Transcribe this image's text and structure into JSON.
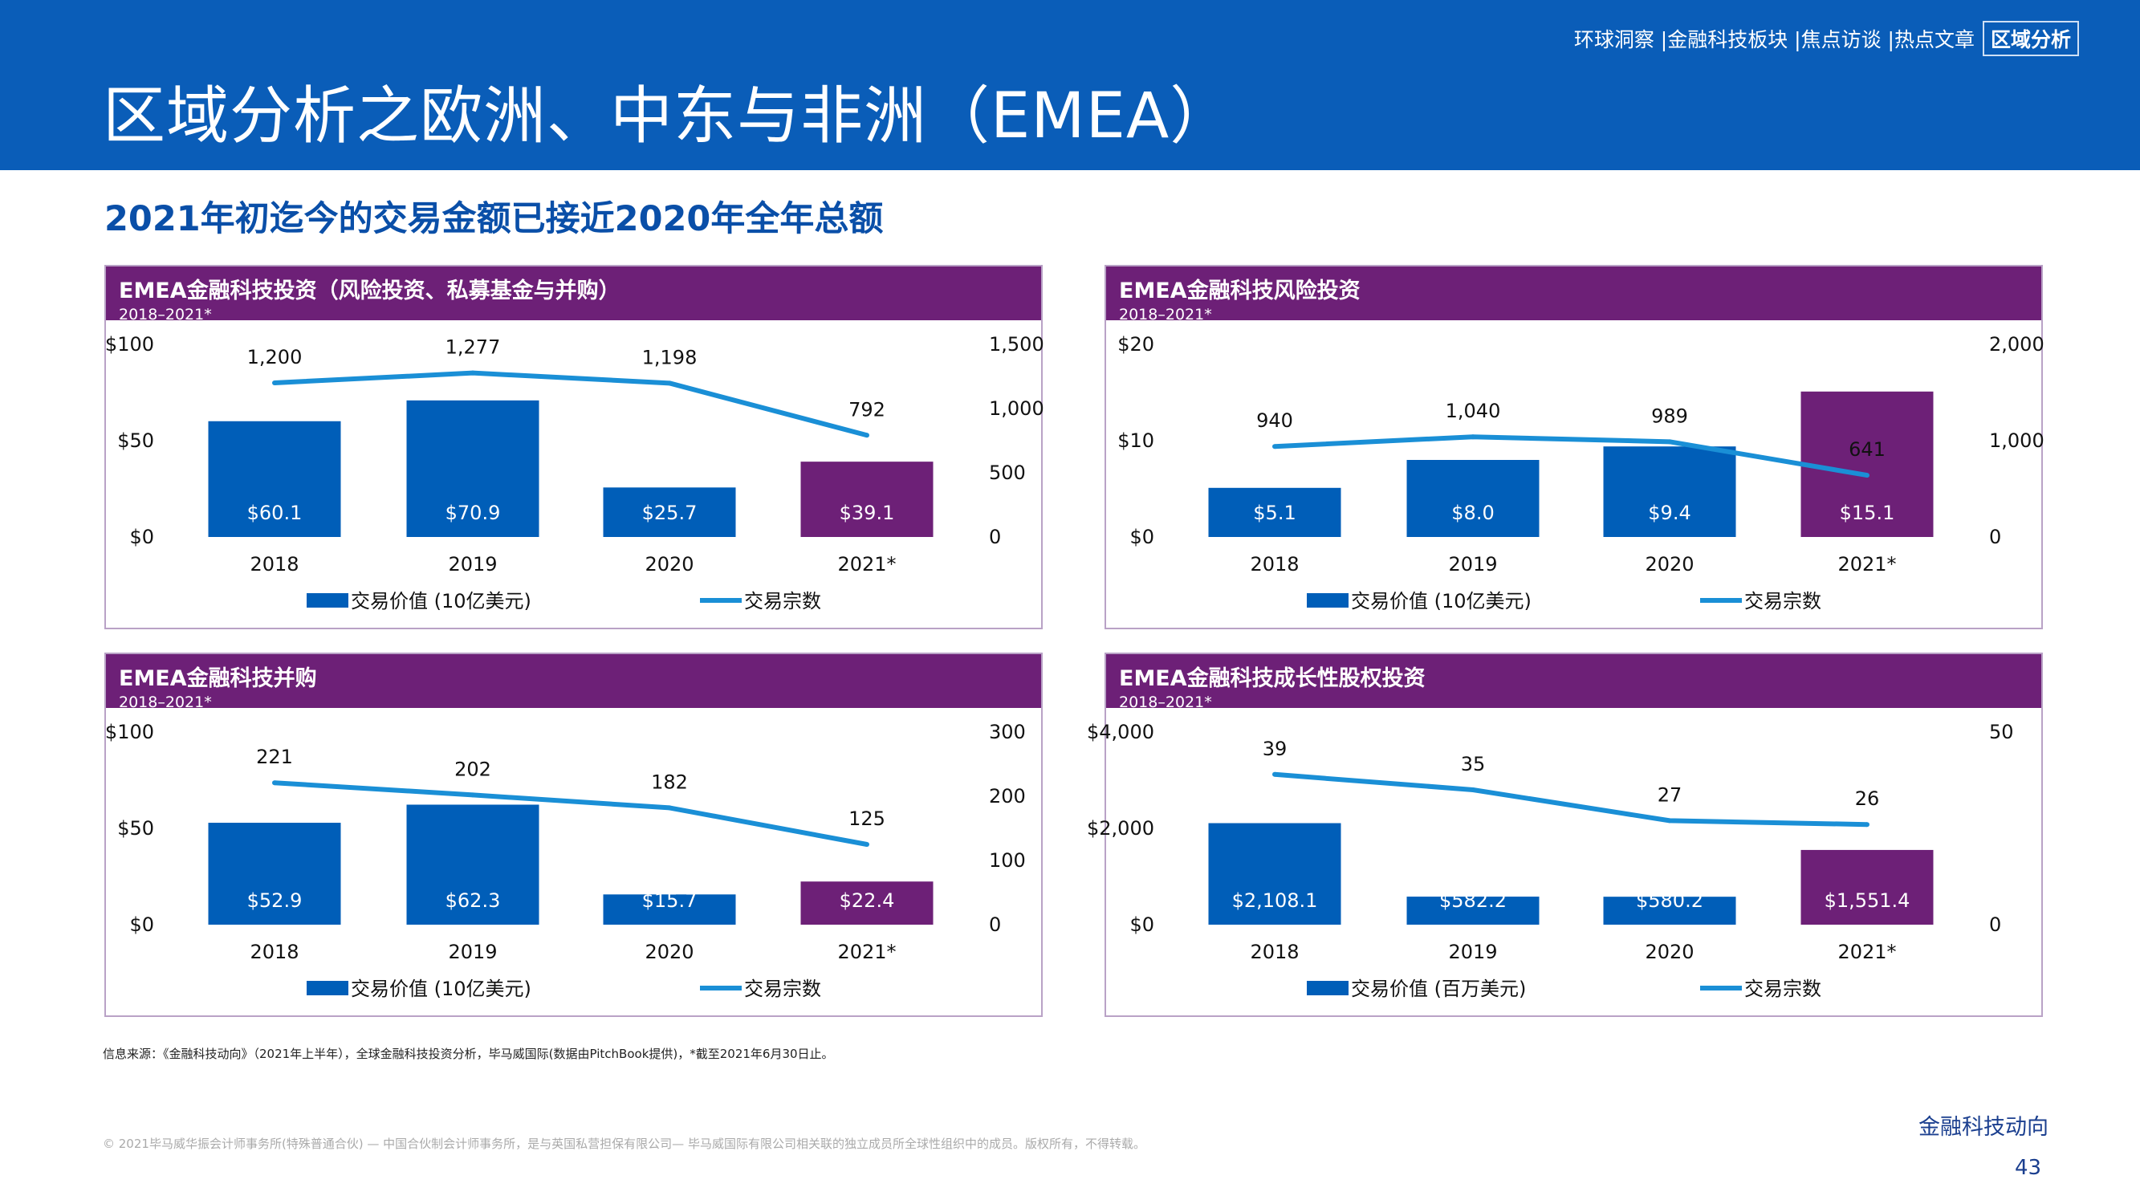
{
  "header": {
    "title": "区域分析之欧洲、中东与非洲（EMEA）",
    "nav": [
      {
        "label": "环球洞察 | "
      },
      {
        "label": "金融科技板块 | "
      },
      {
        "label": "焦点访谈 | "
      },
      {
        "label": "热点文章"
      },
      {
        "label": "区域分析",
        "active": true
      }
    ]
  },
  "subtitle": "2021年初迄今的交易金额已接近2020年全年总额",
  "colors": {
    "band": "#0a5db8",
    "panel_header": "#6d2077",
    "bar": "#005eb8",
    "bar_highlight": "#6d2077",
    "line": "#1a8fd6"
  },
  "chart_data": [
    {
      "type": "bar",
      "title": "EMEA金融科技投资（风险投资、私募基金与并购）",
      "subtitle": "2018–2021*",
      "categories": [
        "2018",
        "2019",
        "2020",
        "2021*"
      ],
      "left_axis": {
        "ticks": [
          "$100",
          "$50",
          "$0"
        ],
        "range": [
          0,
          100
        ]
      },
      "right_axis": {
        "ticks": [
          "1,500",
          "1,000",
          "500",
          "0"
        ],
        "range": [
          0,
          1500
        ]
      },
      "series": [
        {
          "name": "交易价值 (10亿美元)",
          "type": "bar",
          "values": [
            60.1,
            70.9,
            25.7,
            39.1
          ],
          "labels": [
            "$60.1",
            "$70.9",
            "$25.7",
            "$39.1"
          ]
        },
        {
          "name": "交易宗数",
          "type": "line",
          "values": [
            1200,
            1277,
            1198,
            792
          ],
          "labels": [
            "1,200",
            "1,277",
            "1,198",
            "792"
          ]
        }
      ],
      "legend": "bottom"
    },
    {
      "type": "bar",
      "title": "EMEA金融科技风险投资",
      "subtitle": "2018–2021*",
      "categories": [
        "2018",
        "2019",
        "2020",
        "2021*"
      ],
      "left_axis": {
        "ticks": [
          "$20",
          "$10",
          "$0"
        ],
        "range": [
          0,
          20
        ]
      },
      "right_axis": {
        "ticks": [
          "2,000",
          "1,000",
          "0"
        ],
        "range": [
          0,
          2000
        ]
      },
      "series": [
        {
          "name": "交易价值 (10亿美元)",
          "type": "bar",
          "values": [
            5.1,
            8.0,
            9.4,
            15.1
          ],
          "labels": [
            "$5.1",
            "$8.0",
            "$9.4",
            "$15.1"
          ]
        },
        {
          "name": "交易宗数",
          "type": "line",
          "values": [
            940,
            1040,
            989,
            641
          ],
          "labels": [
            "940",
            "1,040",
            "989",
            "641"
          ]
        }
      ],
      "legend": "bottom"
    },
    {
      "type": "bar",
      "title": "EMEA金融科技并购",
      "subtitle": "2018–2021*",
      "categories": [
        "2018",
        "2019",
        "2020",
        "2021*"
      ],
      "left_axis": {
        "ticks": [
          "$100",
          "$50",
          "$0"
        ],
        "range": [
          0,
          100
        ]
      },
      "right_axis": {
        "ticks": [
          "300",
          "200",
          "100",
          "0"
        ],
        "range": [
          0,
          300
        ]
      },
      "series": [
        {
          "name": "交易价值 (10亿美元)",
          "type": "bar",
          "values": [
            52.9,
            62.3,
            15.7,
            22.4
          ],
          "labels": [
            "$52.9",
            "$62.3",
            "$15.7",
            "$22.4"
          ]
        },
        {
          "name": "交易宗数",
          "type": "line",
          "values": [
            221,
            202,
            182,
            125
          ],
          "labels": [
            "221",
            "202",
            "182",
            "125"
          ]
        }
      ],
      "legend": "bottom"
    },
    {
      "type": "bar",
      "title": "EMEA金融科技成长性股权投资",
      "subtitle": "2018–2021*",
      "categories": [
        "2018",
        "2019",
        "2020",
        "2021*"
      ],
      "left_axis": {
        "ticks": [
          "$4,000",
          "$2,000",
          "$0"
        ],
        "range": [
          0,
          4000
        ]
      },
      "right_axis": {
        "ticks": [
          "50",
          "0"
        ],
        "range": [
          0,
          50
        ]
      },
      "series": [
        {
          "name": "交易价值 (百万美元)",
          "type": "bar",
          "values": [
            2108.1,
            582.2,
            580.2,
            1551.4
          ],
          "labels": [
            "$2,108.1",
            "$582.2",
            "$580.2",
            "$1,551.4"
          ]
        },
        {
          "name": "交易宗数",
          "type": "line",
          "values": [
            39,
            35,
            27,
            26
          ],
          "labels": [
            "39",
            "35",
            "27",
            "26"
          ]
        }
      ],
      "legend": "bottom"
    }
  ],
  "footer": {
    "source": "信息来源：《金融科技动向》（2021年上半年），全球金融科技投资分析，毕马威国际(数据由PitchBook提供)，*截至2021年6月30日止。",
    "copyright": "© 2021毕马威华振会计师事务所(特殊普通合伙) — 中国合伙制会计师事务所，是与英国私营担保有限公司— 毕马威国际有限公司相关联的独立成员所全球性组织中的成员。版权所有，不得转载。",
    "publication": "金融科技动向",
    "page_number": "43"
  }
}
